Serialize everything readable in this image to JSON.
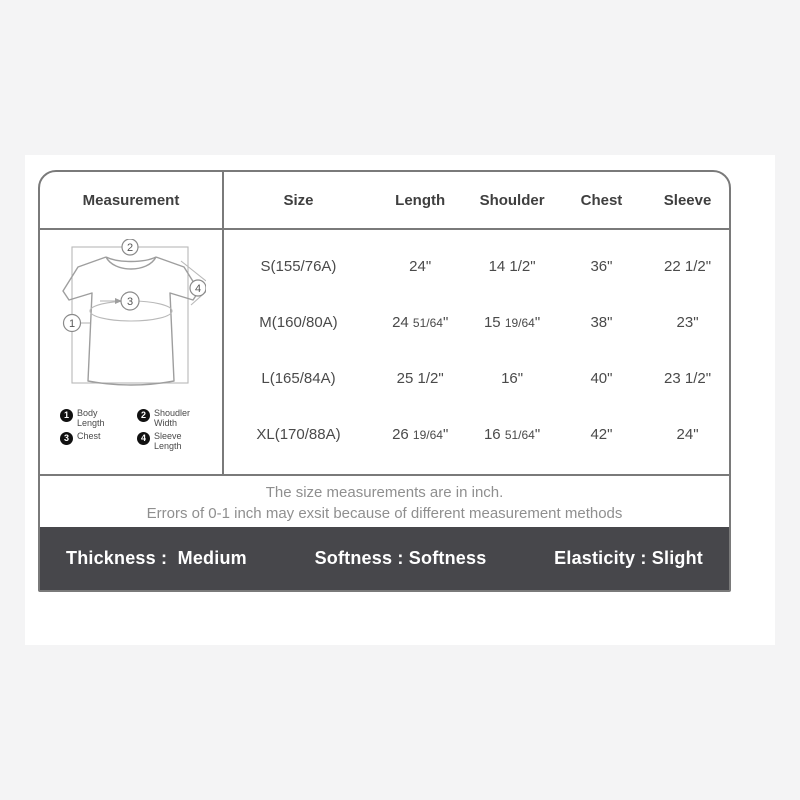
{
  "chart_data": {
    "type": "table",
    "title": "Measurement",
    "columns": [
      "Size",
      "Length",
      "Shoulder",
      "Chest",
      "Sleeve"
    ],
    "rows": [
      [
        "S(155/76A)",
        "24\"",
        "14 1/2\"",
        "36\"",
        "22 1/2\""
      ],
      [
        "M(160/80A)",
        "24 51/64\"",
        "15 19/64\"",
        "38\"",
        "23\""
      ],
      [
        "L(165/84A)",
        "25 1/2\"",
        "16\"",
        "40\"",
        "23 1/2\""
      ],
      [
        "XL(170/88A)",
        "26 19/64\"",
        "16 51/64\"",
        "42\"",
        "24\""
      ]
    ],
    "units": "inch"
  },
  "header": {
    "measurement_label": "Measurement"
  },
  "diagram": {
    "markers": [
      "1",
      "2",
      "3",
      "4"
    ],
    "legend": [
      {
        "num": "1",
        "label": "Body Length"
      },
      {
        "num": "2",
        "label": "Shoudler Width"
      },
      {
        "num": "3",
        "label": "Chest"
      },
      {
        "num": "4",
        "label": "Sleeve Length"
      }
    ]
  },
  "note": {
    "line1": "The size measurements are in inch.",
    "line2": "Errors of 0-1 inch may exsit because of different measurement methods"
  },
  "properties": [
    {
      "text": "Thickness :  Medium"
    },
    {
      "text": "Softness : Softness"
    },
    {
      "text": "Elasticity : Slight"
    }
  ],
  "colors": {
    "page_bg": "#f4f4f5",
    "card_bg": "#ffffff",
    "border": "#7a7a7a",
    "bar_bg": "#47474b",
    "bar_text": "#ffffff",
    "note_text": "#8f8f8f",
    "text": "#3f3f3f"
  }
}
